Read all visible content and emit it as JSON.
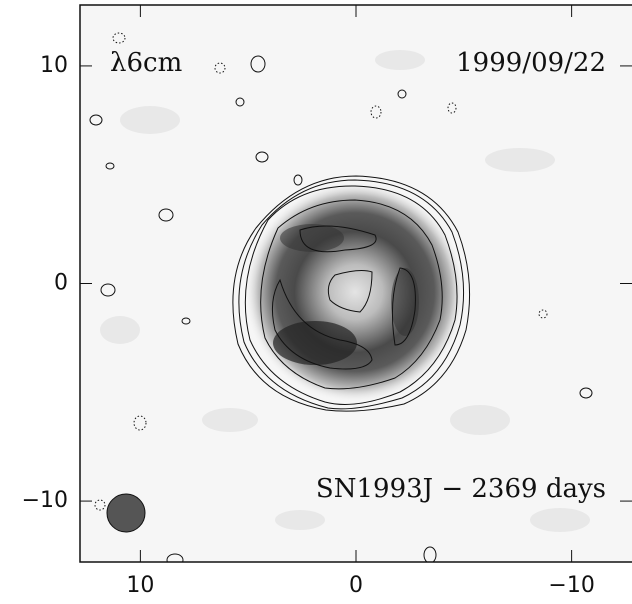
{
  "chart_data": {
    "type": "image",
    "annotations": [
      "λ6cm",
      "1999/09/22",
      "SN1993J − 2369 days"
    ],
    "xlim": [
      12.8,
      -12.8
    ],
    "ylim": [
      -12.8,
      12.8
    ],
    "xticks": [
      10,
      0,
      {
        "value": -10,
        "label": "−10"
      }
    ],
    "yticks": [
      10,
      0,
      {
        "value": -10,
        "label": "−10"
      }
    ]
  }
}
